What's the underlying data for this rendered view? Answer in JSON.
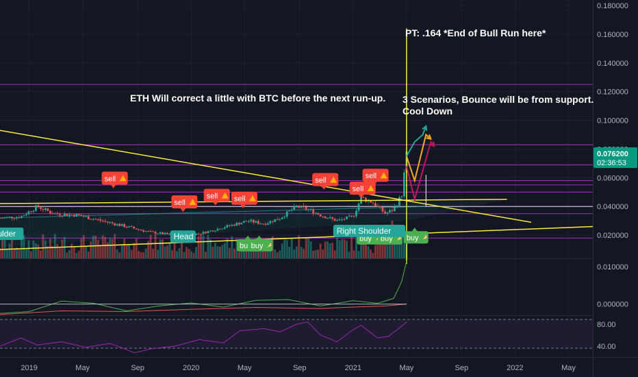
{
  "colors": {
    "background": "#131722",
    "purple_line": "#9c27b0",
    "trend_yellow": "#ffeb3b",
    "candle_up": "#26a69a",
    "candle_down": "#ef5350",
    "sell_badge": "#f44336",
    "buy_badge": "#4caf50",
    "pattern_badge": "#26a69a",
    "last_price": "#089981",
    "macd_line": "#4caf50",
    "macd_signal": "#ef5350",
    "rsi_line": "#9c27b0",
    "projection_green": "#26a69a",
    "projection_yellow": "#f9a825",
    "projection_red": "#c2185b"
  },
  "annotations": {
    "pt": "PT: .164  *End of Bull Run here*",
    "eth": "ETH Will correct a little with BTC before the next run-up.",
    "scenarios_1": "3 Scenarios, Bounce will be from support.",
    "scenarios_2": "Cool Down"
  },
  "last_price": {
    "value": "0.076200",
    "countdown": "02:36:53"
  },
  "signals": {
    "sell_label": "sell",
    "buy_label": "buy",
    "sell_positions": [
      {
        "date": 2019.52,
        "price": 0.0595
      },
      {
        "date": 2019.95,
        "price": 0.043
      },
      {
        "date": 2020.15,
        "price": 0.0475
      },
      {
        "date": 2020.32,
        "price": 0.0455
      },
      {
        "date": 2020.82,
        "price": 0.0585
      },
      {
        "date": 2021.05,
        "price": 0.0525
      },
      {
        "date": 2021.13,
        "price": 0.0615
      }
    ],
    "buy_positions": [
      {
        "date": 2020.35,
        "price": 0.013
      },
      {
        "date": 2020.42,
        "price": 0.013
      },
      {
        "date": 2021.09,
        "price": 0.0178
      },
      {
        "date": 2021.22,
        "price": 0.0178
      },
      {
        "date": 2021.38,
        "price": 0.0185
      }
    ]
  },
  "patterns": [
    {
      "label": "Head",
      "date": 2019.95,
      "price": 0.019
    },
    {
      "label": "Right Shoulder",
      "date": 2021.1,
      "price": 0.023
    },
    {
      "label": "Shoulder",
      "date": 2018.9,
      "price": 0.021
    }
  ],
  "chart_data": [
    {
      "type": "line",
      "title": "",
      "x_tick_labels": [
        "2019",
        "May",
        "Sep",
        "2020",
        "May",
        "Sep",
        "2021",
        "May",
        "Sep",
        "2022",
        "May"
      ],
      "x_tick_values": [
        2019.0,
        2019.33,
        2019.67,
        2020.0,
        2020.33,
        2020.67,
        2021.0,
        2021.33,
        2021.67,
        2022.0,
        2022.33
      ],
      "xlim": [
        2018.82,
        2022.48
      ],
      "ylim": [
        0.0,
        0.18
      ],
      "y_tick_labels": [
        "0.020000",
        "0.040000",
        "0.060000",
        "0.080000",
        "0.100000",
        "0.120000",
        "0.140000",
        "0.160000",
        "0.180000"
      ],
      "y_tick_values": [
        0.02,
        0.04,
        0.06,
        0.08,
        0.1,
        0.12,
        0.14,
        0.16,
        0.18
      ],
      "price_series": {
        "x": [
          2018.82,
          2018.95,
          2019.05,
          2019.15,
          2019.3,
          2019.45,
          2019.6,
          2019.75,
          2019.9,
          2020.05,
          2020.15,
          2020.25,
          2020.35,
          2020.45,
          2020.55,
          2020.65,
          2020.72,
          2020.8,
          2020.9,
          2021.0,
          2021.05,
          2021.12,
          2021.2,
          2021.25,
          2021.3,
          2021.33
        ],
        "y": [
          0.032,
          0.033,
          0.04,
          0.035,
          0.034,
          0.03,
          0.026,
          0.022,
          0.02,
          0.021,
          0.024,
          0.027,
          0.03,
          0.028,
          0.032,
          0.04,
          0.038,
          0.034,
          0.03,
          0.033,
          0.046,
          0.043,
          0.035,
          0.038,
          0.048,
          0.0762
        ]
      },
      "horizontal_levels": [
        0.125,
        0.083,
        0.069,
        0.058,
        0.055,
        0.05,
        0.04,
        0.035,
        0.018
      ],
      "trendlines": [
        {
          "x1": 2018.82,
          "y1": 0.093,
          "x2": 2022.1,
          "y2": 0.029
        },
        {
          "x1": 2018.82,
          "y1": 0.042,
          "x2": 2021.95,
          "y2": 0.045
        },
        {
          "x1": 2018.82,
          "y1": 0.01,
          "x2": 2022.48,
          "y2": 0.026
        },
        {
          "x1": 2021.33,
          "y1": 0.0,
          "x2": 2021.33,
          "y2": 0.164
        }
      ],
      "projections": [
        {
          "name": "Bounce",
          "x": [
            2021.33,
            2021.38,
            2021.43,
            2021.45
          ],
          "y": [
            0.075,
            0.085,
            0.09,
            0.096
          ]
        },
        {
          "name": "Correct",
          "x": [
            2021.33,
            2021.38,
            2021.45,
            2021.48
          ],
          "y": [
            0.075,
            0.058,
            0.09,
            0.087
          ]
        },
        {
          "name": "Cool Down",
          "x": [
            2021.33,
            2021.38,
            2021.48,
            2021.5
          ],
          "y": [
            0.068,
            0.045,
            0.085,
            0.082
          ]
        }
      ]
    },
    {
      "type": "line",
      "title": "",
      "ylim": [
        -0.003,
        0.012
      ],
      "y_tick_labels": [
        "0.010000",
        "0.000000"
      ],
      "y_tick_values": [
        0.01,
        0.0
      ],
      "series": [
        {
          "x": [
            2018.82,
            2019.0,
            2019.2,
            2019.4,
            2019.6,
            2019.8,
            2020.0,
            2020.2,
            2020.4,
            2020.6,
            2020.8,
            2021.0,
            2021.15,
            2021.25,
            2021.3,
            2021.33
          ],
          "y": [
            -0.0025,
            -0.002,
            0.0008,
            0.0002,
            -0.0018,
            -0.0005,
            0.0003,
            -0.0008,
            0.001,
            0.0012,
            -0.0005,
            0.0009,
            0.0002,
            0.0015,
            0.006,
            0.0115
          ]
        },
        {
          "x": [
            2018.82,
            2019.2,
            2019.6,
            2020.0,
            2020.4,
            2020.8,
            2021.0,
            2021.2,
            2021.33
          ],
          "y": [
            -0.0028,
            -0.0018,
            -0.002,
            -0.0014,
            -0.0009,
            -0.0012,
            -0.0008,
            -0.0005,
            0.0
          ]
        }
      ]
    },
    {
      "type": "line",
      "title": "",
      "ylim": [
        20,
        95
      ],
      "y_tick_labels": [
        "80.00",
        "40.00"
      ],
      "y_tick_values": [
        80,
        40
      ],
      "series": [
        {
          "x": [
            2018.82,
            2018.95,
            2019.05,
            2019.2,
            2019.35,
            2019.5,
            2019.65,
            2019.75,
            2019.9,
            2020.05,
            2020.2,
            2020.3,
            2020.45,
            2020.55,
            2020.65,
            2020.72,
            2020.8,
            2020.9,
            2021.0,
            2021.05,
            2021.15,
            2021.22,
            2021.28,
            2021.33
          ],
          "y": [
            40,
            55,
            42,
            48,
            38,
            45,
            28,
            35,
            40,
            52,
            46,
            68,
            72,
            66,
            80,
            84,
            60,
            48,
            70,
            78,
            55,
            58,
            72,
            84
          ]
        }
      ]
    }
  ]
}
